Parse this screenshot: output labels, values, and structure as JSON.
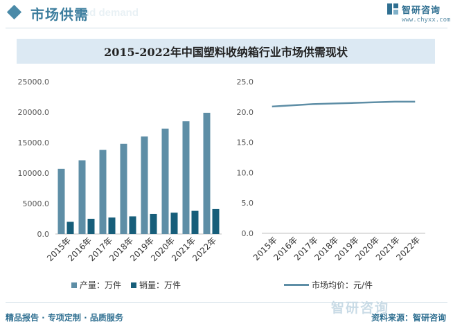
{
  "header": {
    "section_title": "市场供需",
    "ghost_text": "nd demand",
    "brand_name": "智研咨询",
    "brand_url": "www.chyxx.com"
  },
  "title": "2015-2022年中国塑料收纳箱行业市场供需现状",
  "colors": {
    "production": "#5e8ea6",
    "sales": "#175e7a",
    "price_line": "#5e8ea6",
    "accent": "#3d7e9e"
  },
  "chart_data": [
    {
      "type": "bar",
      "categories": [
        "2015年",
        "2016年",
        "2017年",
        "2018年",
        "2019年",
        "2020年",
        "2021年",
        "2022年"
      ],
      "series": [
        {
          "name": "产量：万件",
          "values": [
            10700,
            12100,
            13800,
            14800,
            16000,
            17300,
            18500,
            19900
          ]
        },
        {
          "name": "销量：万件",
          "values": [
            2000,
            2500,
            2700,
            2900,
            3300,
            3500,
            3800,
            4100
          ]
        }
      ],
      "yticks": [
        "0.0",
        "5000.0",
        "10000.0",
        "15000.0",
        "20000.0",
        "25000.0"
      ],
      "ylim": [
        0,
        25000
      ],
      "grid": false,
      "legend": "bottom"
    },
    {
      "type": "line",
      "categories": [
        "2015年",
        "2016年",
        "2017年",
        "2018年",
        "2019年",
        "2020年",
        "2021年",
        "2022年"
      ],
      "series": [
        {
          "name": "市场均价：元/件",
          "values": [
            20.9,
            21.1,
            21.3,
            21.4,
            21.5,
            21.6,
            21.7,
            21.7
          ]
        }
      ],
      "yticks": [
        "0.0",
        "5.0",
        "10.0",
        "15.0",
        "20.0",
        "25.0"
      ],
      "ylim": [
        0,
        25
      ],
      "grid": false,
      "legend": "bottom"
    }
  ],
  "legend": {
    "production_label": "产量：万件",
    "sales_label": "销量：万件",
    "price_label": "市场均价：元/件"
  },
  "footer": {
    "left_text": "精品报告 · 专项定制 · 品质服务",
    "right_text": "资料来源：智研咨询",
    "watermark_brand": "智研咨询"
  }
}
